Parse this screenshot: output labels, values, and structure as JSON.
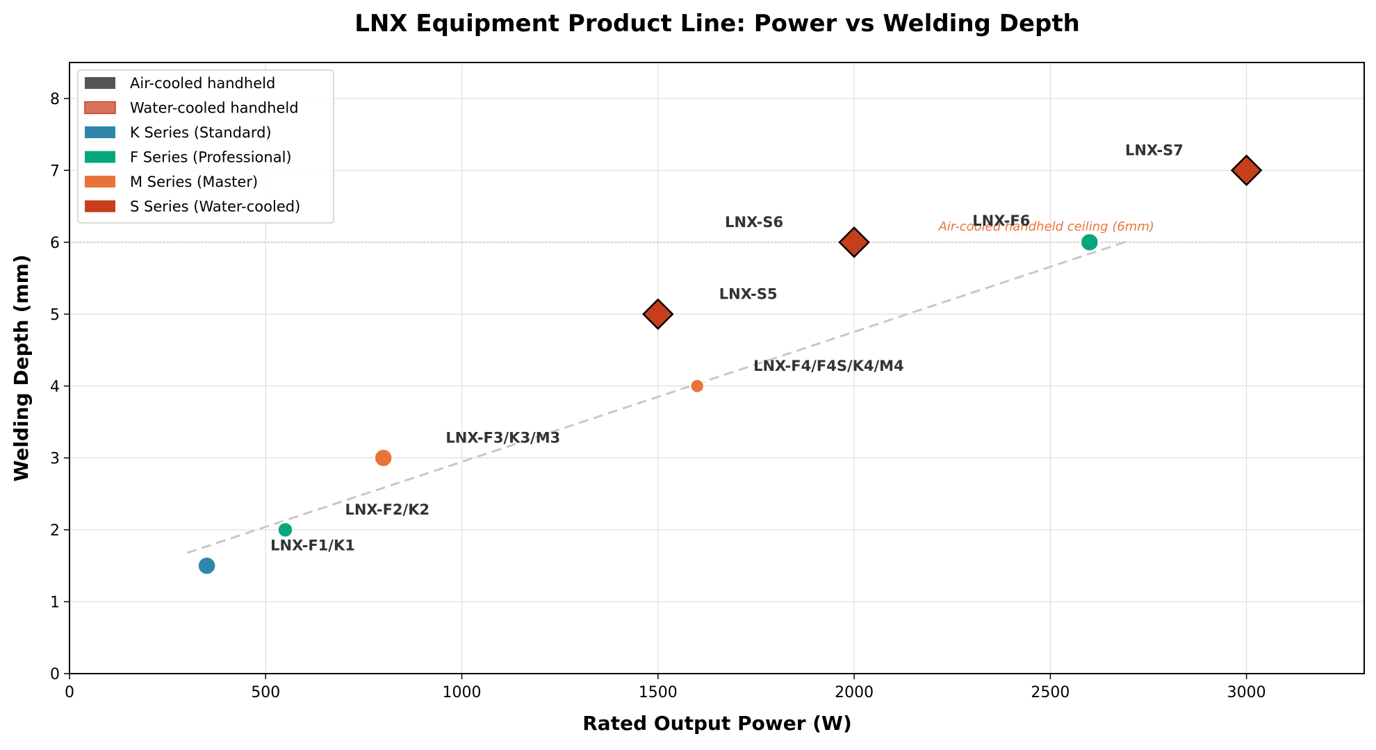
{
  "chart_data": {
    "type": "scatter",
    "title": "LNX Equipment Product Line: Power vs Welding Depth",
    "xlabel": "Rated Output Power (W)",
    "ylabel": "Welding Depth (mm)",
    "xlim": [
      0,
      3300
    ],
    "ylim": [
      0,
      8.5
    ],
    "xticks": [
      0,
      500,
      1000,
      1500,
      2000,
      2500,
      3000
    ],
    "yticks": [
      0,
      1,
      2,
      3,
      4,
      5,
      6,
      7,
      8
    ],
    "grid": true,
    "legend_position": "top-left",
    "legend": [
      {
        "label": "Air-cooled handheld",
        "color": "#555555"
      },
      {
        "label": "Water-cooled handheld",
        "color": "#D9735E"
      },
      {
        "label": "K Series (Standard)",
        "color": "#2E86AB"
      },
      {
        "label": "F Series (Professional)",
        "color": "#06A77D"
      },
      {
        "label": "M Series (Master)",
        "color": "#E8743B"
      },
      {
        "label": "S Series (Water-cooled)",
        "color": "#C73E1D"
      }
    ],
    "points": [
      {
        "x": 350,
        "y": 1.5,
        "series": "K Series (Standard)",
        "marker": "circle",
        "size": "large"
      },
      {
        "x": 550,
        "y": 2.0,
        "series": "F Series (Professional)",
        "marker": "circle",
        "size": "medium"
      },
      {
        "x": 800,
        "y": 3.0,
        "series": "M Series (Master)",
        "marker": "circle",
        "size": "large"
      },
      {
        "x": 1600,
        "y": 4.0,
        "series": "M Series (Master)",
        "marker": "circle",
        "size": "small"
      },
      {
        "x": 2600,
        "y": 6.0,
        "series": "F Series (Professional)",
        "marker": "circle",
        "size": "large"
      },
      {
        "x": 1500,
        "y": 5.0,
        "series": "S Series (Water-cooled)",
        "marker": "diamond",
        "size": "large"
      },
      {
        "x": 2000,
        "y": 6.0,
        "series": "S Series (Water-cooled)",
        "marker": "diamond",
        "size": "large"
      },
      {
        "x": 3000,
        "y": 7.0,
        "series": "S Series (Water-cooled)",
        "marker": "diamond",
        "size": "large"
      }
    ],
    "point_labels": [
      {
        "text": "LNX-F1/K1",
        "x": 620,
        "y": 1.78
      },
      {
        "text": "LNX-F2/K2",
        "x": 810,
        "y": 2.28
      },
      {
        "text": "LNX-F3/K3/M3",
        "x": 1105,
        "y": 3.28
      },
      {
        "text": "LNX-F4/F4S/K4/M4",
        "x": 1935,
        "y": 4.28
      },
      {
        "text": "LNX-S5",
        "x": 1730,
        "y": 5.28
      },
      {
        "text": "LNX-S6",
        "x": 1745,
        "y": 6.28
      },
      {
        "text": "LNX-F6",
        "x": 2375,
        "y": 6.3
      },
      {
        "text": "LNX-S7",
        "x": 2765,
        "y": 7.28
      }
    ],
    "trend_line": {
      "style": "dashed",
      "color": "#C8C8C8",
      "x": [
        300,
        2700
      ],
      "y": [
        1.68,
        6.02
      ]
    },
    "reference_line": {
      "y": 6,
      "color": "#E8743B",
      "label": "Air-cooled handheld ceiling (6mm)",
      "label_x": 2490,
      "label_y": 6.22
    }
  }
}
